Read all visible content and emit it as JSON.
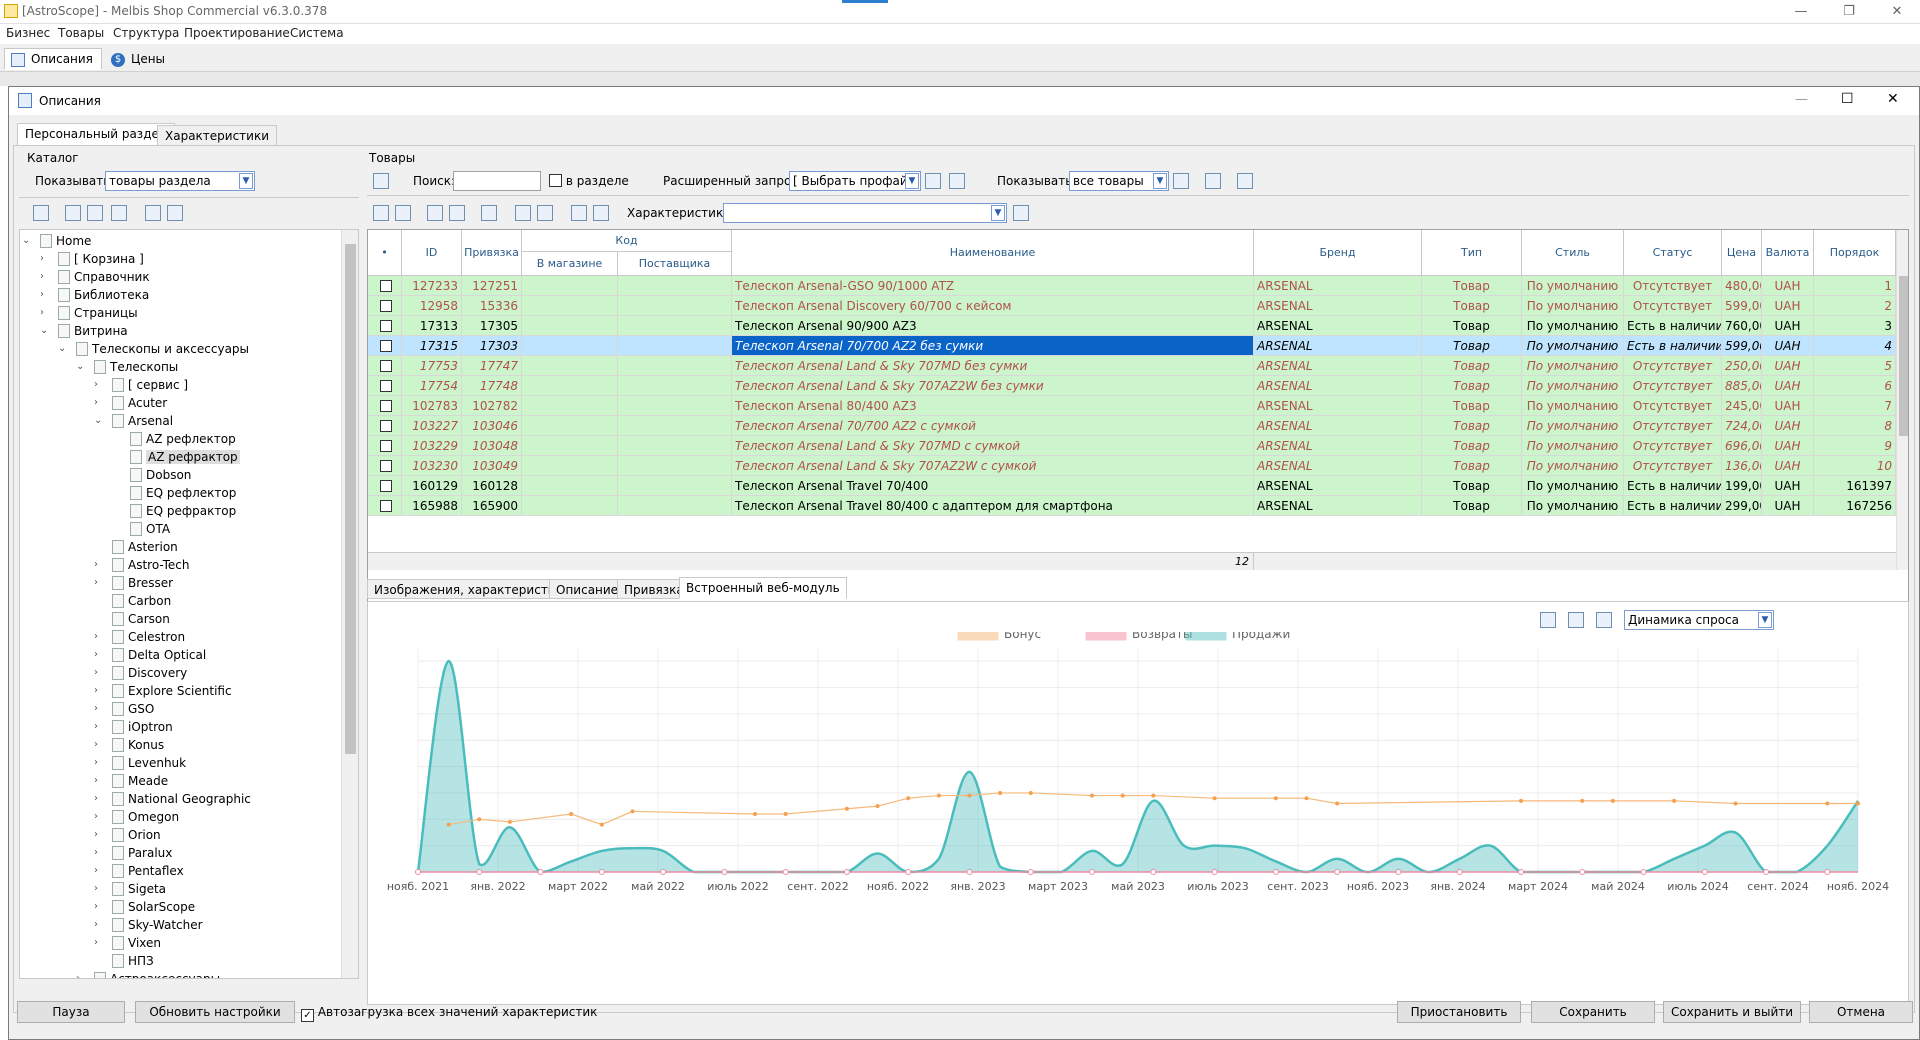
{
  "app": {
    "title": "[AstroScope] - Melbis Shop Commercial v6.3.0.378"
  },
  "menu": [
    "Бизнес",
    "Товары",
    "Структура",
    "Проектирование",
    "Система"
  ],
  "top_tabs": [
    "Описания",
    "Цены"
  ],
  "dialog": {
    "title": "Описания",
    "tabs": [
      "Персональный раздел",
      "Характеристики"
    ]
  },
  "catalog": {
    "label": "Каталог",
    "show_label": "Показывать:",
    "show_value": "товары раздела"
  },
  "tree": [
    {
      "t": "Home",
      "lvl": 0,
      "exp": "v"
    },
    {
      "t": "[ Корзина ]",
      "lvl": 1,
      "exp": ">"
    },
    {
      "t": "Справочник",
      "lvl": 1,
      "exp": ">"
    },
    {
      "t": "Библиотека",
      "lvl": 1,
      "exp": ">"
    },
    {
      "t": "Страницы",
      "lvl": 1,
      "exp": ">"
    },
    {
      "t": "Витрина",
      "lvl": 1,
      "exp": "v"
    },
    {
      "t": "Телескопы и аксессуары",
      "lvl": 2,
      "exp": "v"
    },
    {
      "t": "Телескопы",
      "lvl": 3,
      "exp": "v"
    },
    {
      "t": "[ сервис ]",
      "lvl": 4,
      "exp": ">"
    },
    {
      "t": "Acuter",
      "lvl": 4,
      "exp": ">"
    },
    {
      "t": "Arsenal",
      "lvl": 4,
      "exp": "v"
    },
    {
      "t": "AZ рефлектор",
      "lvl": 5,
      "exp": ""
    },
    {
      "t": "AZ рефрактор",
      "lvl": 5,
      "exp": "",
      "sel": true
    },
    {
      "t": "Dobson",
      "lvl": 5,
      "exp": ""
    },
    {
      "t": "EQ рефлектор",
      "lvl": 5,
      "exp": ""
    },
    {
      "t": "EQ рефрактор",
      "lvl": 5,
      "exp": ""
    },
    {
      "t": "OTA",
      "lvl": 5,
      "exp": ""
    },
    {
      "t": "Asterion",
      "lvl": 4,
      "exp": ""
    },
    {
      "t": "Astro-Tech",
      "lvl": 4,
      "exp": ">"
    },
    {
      "t": "Bresser",
      "lvl": 4,
      "exp": ">"
    },
    {
      "t": "Carbon",
      "lvl": 4,
      "exp": ""
    },
    {
      "t": "Carson",
      "lvl": 4,
      "exp": ""
    },
    {
      "t": "Celestron",
      "lvl": 4,
      "exp": ">"
    },
    {
      "t": "Delta Optical",
      "lvl": 4,
      "exp": ">"
    },
    {
      "t": "Discovery",
      "lvl": 4,
      "exp": ">"
    },
    {
      "t": "Explore Scientific",
      "lvl": 4,
      "exp": ">"
    },
    {
      "t": "GSO",
      "lvl": 4,
      "exp": ">"
    },
    {
      "t": "iOptron",
      "lvl": 4,
      "exp": ">"
    },
    {
      "t": "Konus",
      "lvl": 4,
      "exp": ">"
    },
    {
      "t": "Levenhuk",
      "lvl": 4,
      "exp": ">"
    },
    {
      "t": "Meade",
      "lvl": 4,
      "exp": ">"
    },
    {
      "t": "National Geographic",
      "lvl": 4,
      "exp": ">"
    },
    {
      "t": "Omegon",
      "lvl": 4,
      "exp": ">"
    },
    {
      "t": "Orion",
      "lvl": 4,
      "exp": ">"
    },
    {
      "t": "Paralux",
      "lvl": 4,
      "exp": ">"
    },
    {
      "t": "Pentaflex",
      "lvl": 4,
      "exp": ">"
    },
    {
      "t": "Sigeta",
      "lvl": 4,
      "exp": ">"
    },
    {
      "t": "SolarScope",
      "lvl": 4,
      "exp": ">"
    },
    {
      "t": "Sky-Watcher",
      "lvl": 4,
      "exp": ">"
    },
    {
      "t": "Vixen",
      "lvl": 4,
      "exp": ">"
    },
    {
      "t": "НПЗ",
      "lvl": 4,
      "exp": ""
    },
    {
      "t": "Астроаксессуары",
      "lvl": 3,
      "exp": ">"
    }
  ],
  "products": {
    "label": "Товары",
    "search_label": "Поиск:",
    "in_section": "в разделе",
    "adv_label": "Расширенный запрос:",
    "adv_value": "[ Выбрать профайл ]",
    "show_label": "Показывать:",
    "show_value": "все товары",
    "char_label": "Характеристика:"
  },
  "columns": {
    "id": "ID",
    "bind": "Привязка",
    "code": "Код",
    "in_store": "В магазине",
    "supplier": "Поставщика",
    "name": "Наименование",
    "brand": "Бренд",
    "type": "Тип",
    "style": "Стиль",
    "status": "Статус",
    "price": "Цена",
    "currency": "Валюта",
    "order": "Порядок"
  },
  "rows": [
    {
      "id": "127233",
      "bind": "127251",
      "name": "Телескоп Arsenal-GSO 90/1000 ATZ",
      "brand": "ARSENAL",
      "type": "Товар",
      "style": "По умолчанию",
      "status": "Отсутствует",
      "price": "480,00",
      "cur": "UAH",
      "order": "1",
      "k": "gray"
    },
    {
      "id": "12958",
      "bind": "15336",
      "name": "Телескоп Arsenal Discovery 60/700 с кейсом",
      "brand": "ARSENAL",
      "type": "Товар",
      "style": "По умолчанию",
      "status": "Отсутствует",
      "price": "599,00",
      "cur": "UAH",
      "order": "2",
      "k": "gray"
    },
    {
      "id": "17313",
      "bind": "17305",
      "name": "Телескоп Arsenal 90/900 AZ3",
      "brand": "ARSENAL",
      "type": "Товар",
      "style": "По умолчанию",
      "status": "Есть в наличии",
      "price": "760,00",
      "cur": "UAH",
      "order": "3",
      "k": "norm"
    },
    {
      "id": "17315",
      "bind": "17303",
      "name": "Телескоп Arsenal 70/700 AZ2 без сумки",
      "brand": "ARSENAL",
      "type": "Товар",
      "style": "По умолчанию",
      "status": "Есть в наличии",
      "price": "599,00",
      "cur": "UAH",
      "order": "4",
      "k": "sel"
    },
    {
      "id": "17753",
      "bind": "17747",
      "name": "Телескоп Arsenal Land & Sky 707MD без сумки",
      "brand": "ARSENAL",
      "type": "Товар",
      "style": "По умолчанию",
      "status": "Отсутствует",
      "price": "250,00",
      "cur": "UAH",
      "order": "5",
      "k": "gray it"
    },
    {
      "id": "17754",
      "bind": "17748",
      "name": "Телескоп Arsenal Land & Sky 707AZ2W без сумки",
      "brand": "ARSENAL",
      "type": "Товар",
      "style": "По умолчанию",
      "status": "Отсутствует",
      "price": "885,00",
      "cur": "UAH",
      "order": "6",
      "k": "gray it"
    },
    {
      "id": "102783",
      "bind": "102782",
      "name": "Телескоп Arsenal 80/400 AZ3",
      "brand": "ARSENAL",
      "type": "Товар",
      "style": "По умолчанию",
      "status": "Отсутствует",
      "price": "245,00",
      "cur": "UAH",
      "order": "7",
      "k": "gray"
    },
    {
      "id": "103227",
      "bind": "103046",
      "name": "Телескоп Arsenal 70/700 AZ2 с сумкой",
      "brand": "ARSENAL",
      "type": "Товар",
      "style": "По умолчанию",
      "status": "Отсутствует",
      "price": "724,00",
      "cur": "UAH",
      "order": "8",
      "k": "gray it"
    },
    {
      "id": "103229",
      "bind": "103048",
      "name": "Телескоп Arsenal Land & Sky 707MD с сумкой",
      "brand": "ARSENAL",
      "type": "Товар",
      "style": "По умолчанию",
      "status": "Отсутствует",
      "price": "696,00",
      "cur": "UAH",
      "order": "9",
      "k": "gray it"
    },
    {
      "id": "103230",
      "bind": "103049",
      "name": "Телескоп Arsenal Land & Sky 707AZ2W с сумкой",
      "brand": "ARSENAL",
      "type": "Товар",
      "style": "По умолчанию",
      "status": "Отсутствует",
      "price": "136,00",
      "cur": "UAH",
      "order": "10",
      "k": "gray it"
    },
    {
      "id": "160129",
      "bind": "160128",
      "name": "Телескоп Arsenal Travel 70/400",
      "brand": "ARSENAL",
      "type": "Товар",
      "style": "По умолчанию",
      "status": "Есть в наличии",
      "price": "199,00",
      "cur": "UAH",
      "order": "161397",
      "k": "norm"
    },
    {
      "id": "165988",
      "bind": "165900",
      "name": "Телескоп Arsenal Travel 80/400 с адаптером для смартфона",
      "brand": "ARSENAL",
      "type": "Товар",
      "style": "По умолчанию",
      "status": "Есть в наличии",
      "price": "299,00",
      "cur": "UAH",
      "order": "167256",
      "k": "norm"
    }
  ],
  "footer_count": "12",
  "lower_tabs": [
    "Изображения, характеристики",
    "Описание",
    "Привязка",
    "Встроенный веб-модуль"
  ],
  "chart_select": "Динамика спроса",
  "chart_data": {
    "type": "area",
    "series": [
      {
        "name": "Бонус",
        "color": "#f5b97a"
      },
      {
        "name": "Возвраты",
        "color": "#f08aa0"
      },
      {
        "name": "Продажи",
        "color": "#5ec4c4"
      }
    ],
    "x_labels": [
      "нояб. 2021",
      "янв. 2022",
      "март 2022",
      "май 2022",
      "июль 2022",
      "сент. 2022",
      "нояб. 2022",
      "янв. 2023",
      "март 2023",
      "май 2023",
      "июль 2023",
      "сент. 2023",
      "нояб. 2023",
      "янв. 2024",
      "март 2024",
      "май 2024",
      "июль 2024",
      "сент. 2024",
      "нояб. 2024"
    ],
    "sales": [
      0,
      8,
      0.3,
      1.7,
      0,
      0.4,
      0.8,
      0.9,
      0.8,
      0,
      0,
      0,
      0,
      0,
      0,
      0.7,
      0,
      0.5,
      3.8,
      0.2,
      0,
      0,
      0.8,
      0.3,
      2.7,
      1.0,
      1.0,
      0.9,
      0.4,
      0,
      0.5,
      0,
      0.5,
      0,
      0.5,
      1.0,
      0,
      0,
      0,
      0,
      0,
      0.5,
      1.0,
      1.5,
      0,
      0,
      1.0,
      2.7
    ],
    "bonus": [
      null,
      1.8,
      2.0,
      1.9,
      null,
      2.2,
      1.8,
      2.3,
      null,
      null,
      null,
      2.2,
      2.2,
      null,
      2.4,
      2.5,
      2.8,
      2.9,
      2.9,
      3.0,
      3.0,
      null,
      2.9,
      2.9,
      2.9,
      null,
      2.8,
      null,
      2.8,
      2.8,
      2.6,
      null,
      null,
      null,
      null,
      null,
      2.7,
      null,
      2.7,
      2.7,
      null,
      2.7,
      null,
      2.6,
      null,
      null,
      2.6,
      2.6
    ],
    "returns": 0
  },
  "buttons": {
    "pause": "Пауза",
    "refresh": "Обновить настройки",
    "autoload": "Автозагрузка всех значений характеристик",
    "suspend": "Приостановить",
    "save": "Сохранить",
    "save_exit": "Сохранить и выйти",
    "cancel": "Отмена"
  }
}
